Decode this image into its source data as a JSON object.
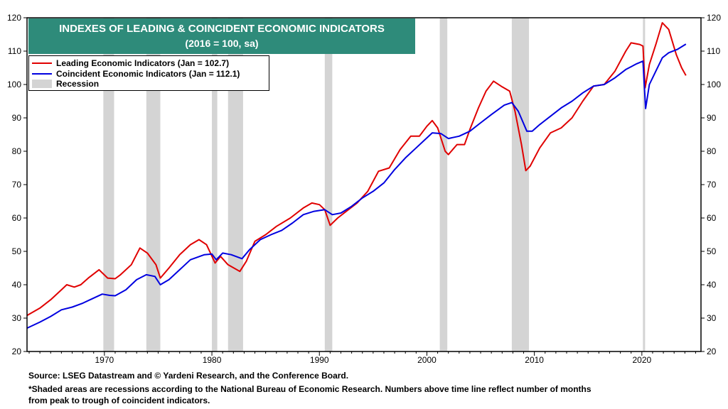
{
  "title": {
    "line1": "INDEXES OF LEADING & COINCIDENT ECONOMIC INDICATORS",
    "line2": "(2016 = 100, sa)"
  },
  "legend": {
    "items": [
      {
        "label": "Leading Economic Indicators (Jan = 102.7)",
        "color": "#e00000",
        "kind": "line"
      },
      {
        "label": "Coincident Economic Indicators (Jan = 112.1)",
        "color": "#0000e0",
        "kind": "line"
      },
      {
        "label": "Recession",
        "color": "#d4d4d4",
        "kind": "box"
      }
    ]
  },
  "footnotes": {
    "source": "Source: LSEG Datastream and © Yardeni Research, and the Conference Board.",
    "note1": "*Shaded areas are recessions according to the National Bureau of Economic Research. Numbers above time line reflect number of months",
    "note2": "from peak to trough of coincident indicators."
  },
  "colors": {
    "leading": "#e00000",
    "coincident": "#0000e0",
    "recession": "#d4d4d4",
    "title_bg": "#2e8b7a"
  },
  "chart_data": {
    "type": "line",
    "xlim": [
      1962.8,
      2025.5
    ],
    "ylim": [
      20,
      120
    ],
    "x_ticks": [
      1970,
      1980,
      1990,
      2000,
      2010,
      2020
    ],
    "y_ticks": [
      20,
      30,
      40,
      50,
      60,
      70,
      80,
      90,
      100,
      110,
      120
    ],
    "grid": false,
    "legend_position": "top-left",
    "recessions": [
      [
        1969.9,
        1970.9
      ],
      [
        1973.9,
        1975.2
      ],
      [
        1980.0,
        1980.5
      ],
      [
        1981.5,
        1982.9
      ],
      [
        1990.5,
        1991.2
      ],
      [
        2001.2,
        2001.9
      ],
      [
        2007.9,
        2009.5
      ],
      [
        2020.1,
        2020.3
      ]
    ],
    "series": [
      {
        "name": "Leading Economic Indicators (Jan = 102.7)",
        "points": [
          [
            1962.8,
            30.8
          ],
          [
            1964,
            33
          ],
          [
            1965,
            35.5
          ],
          [
            1966,
            38.5
          ],
          [
            1966.5,
            40
          ],
          [
            1967.2,
            39.3
          ],
          [
            1967.8,
            40
          ],
          [
            1968.5,
            42
          ],
          [
            1969.5,
            44.5
          ],
          [
            1970.3,
            42
          ],
          [
            1971,
            41.8
          ],
          [
            1971.5,
            43
          ],
          [
            1972.5,
            46
          ],
          [
            1973.3,
            51
          ],
          [
            1974,
            49.5
          ],
          [
            1974.8,
            46
          ],
          [
            1975.2,
            42
          ],
          [
            1976,
            45
          ],
          [
            1977,
            49
          ],
          [
            1978,
            52
          ],
          [
            1978.8,
            53.5
          ],
          [
            1979.5,
            52
          ],
          [
            1980.3,
            46.5
          ],
          [
            1980.8,
            48.5
          ],
          [
            1981.5,
            46
          ],
          [
            1982.6,
            44
          ],
          [
            1983.2,
            47
          ],
          [
            1984,
            53
          ],
          [
            1985,
            55
          ],
          [
            1986,
            57.5
          ],
          [
            1987.3,
            60
          ],
          [
            1988.5,
            63
          ],
          [
            1989.3,
            64.5
          ],
          [
            1990,
            64
          ],
          [
            1990.5,
            62.5
          ],
          [
            1991,
            57.8
          ],
          [
            1991.7,
            60
          ],
          [
            1992.5,
            62
          ],
          [
            1993.5,
            64.5
          ],
          [
            1994.5,
            68
          ],
          [
            1995.5,
            74
          ],
          [
            1996.5,
            75
          ],
          [
            1997.5,
            80.5
          ],
          [
            1998.5,
            84.5
          ],
          [
            1999.3,
            84.5
          ],
          [
            2000,
            87.5
          ],
          [
            2000.5,
            89.2
          ],
          [
            2001,
            87
          ],
          [
            2001.7,
            80
          ],
          [
            2002,
            79
          ],
          [
            2002.8,
            82
          ],
          [
            2003.5,
            82
          ],
          [
            2004,
            86.5
          ],
          [
            2004.8,
            93
          ],
          [
            2005.5,
            98
          ],
          [
            2006.2,
            101
          ],
          [
            2007,
            99.3
          ],
          [
            2007.7,
            98
          ],
          [
            2008.2,
            92
          ],
          [
            2008.8,
            82
          ],
          [
            2009.2,
            74.2
          ],
          [
            2009.6,
            75.5
          ],
          [
            2010.5,
            81
          ],
          [
            2011.5,
            85.5
          ],
          [
            2012.5,
            87
          ],
          [
            2013.5,
            90
          ],
          [
            2014.5,
            95
          ],
          [
            2015.5,
            99.5
          ],
          [
            2016.5,
            100
          ],
          [
            2017.5,
            104
          ],
          [
            2018.5,
            110
          ],
          [
            2019,
            112.5
          ],
          [
            2019.8,
            112
          ],
          [
            2020.1,
            111.5
          ],
          [
            2020.3,
            99
          ],
          [
            2020.7,
            106
          ],
          [
            2021.3,
            112
          ],
          [
            2021.9,
            118.5
          ],
          [
            2022.5,
            116.5
          ],
          [
            2023.2,
            109
          ],
          [
            2023.7,
            105
          ],
          [
            2024.1,
            102.7
          ]
        ]
      },
      {
        "name": "Coincident Economic Indicators (Jan = 112.1)",
        "points": [
          [
            1962.8,
            27
          ],
          [
            1964,
            28.8
          ],
          [
            1965,
            30.5
          ],
          [
            1966,
            32.5
          ],
          [
            1967,
            33.3
          ],
          [
            1968,
            34.5
          ],
          [
            1969,
            36
          ],
          [
            1969.8,
            37.2
          ],
          [
            1970.5,
            36.8
          ],
          [
            1971,
            36.7
          ],
          [
            1972,
            38.5
          ],
          [
            1973,
            41.5
          ],
          [
            1973.9,
            43
          ],
          [
            1974.7,
            42.5
          ],
          [
            1975.2,
            40
          ],
          [
            1976,
            41.5
          ],
          [
            1977,
            44.5
          ],
          [
            1978,
            47.5
          ],
          [
            1979.3,
            49
          ],
          [
            1980,
            49.2
          ],
          [
            1980.4,
            47.5
          ],
          [
            1981,
            49.5
          ],
          [
            1981.8,
            49
          ],
          [
            1982.8,
            47.8
          ],
          [
            1983.5,
            50.5
          ],
          [
            1984.5,
            53.5
          ],
          [
            1985.5,
            55
          ],
          [
            1986.5,
            56.3
          ],
          [
            1987.5,
            58.5
          ],
          [
            1988.5,
            61
          ],
          [
            1989.5,
            62
          ],
          [
            1990.5,
            62.5
          ],
          [
            1991.2,
            61
          ],
          [
            1992,
            61.5
          ],
          [
            1993,
            63.5
          ],
          [
            1994,
            66
          ],
          [
            1995,
            68
          ],
          [
            1996,
            70.5
          ],
          [
            1997,
            74.5
          ],
          [
            1998,
            78
          ],
          [
            1999,
            81
          ],
          [
            2000.5,
            85.5
          ],
          [
            2001.3,
            85.3
          ],
          [
            2002,
            83.8
          ],
          [
            2003,
            84.5
          ],
          [
            2004,
            86
          ],
          [
            2005,
            88.5
          ],
          [
            2006,
            91
          ],
          [
            2007.2,
            93.8
          ],
          [
            2007.9,
            94.6
          ],
          [
            2008.5,
            92
          ],
          [
            2009.3,
            86
          ],
          [
            2009.8,
            86
          ],
          [
            2010.5,
            88
          ],
          [
            2011.5,
            90.5
          ],
          [
            2012.5,
            93
          ],
          [
            2013.5,
            95
          ],
          [
            2014.5,
            97.5
          ],
          [
            2015.5,
            99.5
          ],
          [
            2016.5,
            100
          ],
          [
            2017.5,
            102
          ],
          [
            2018.5,
            104.5
          ],
          [
            2019.5,
            106.2
          ],
          [
            2020.1,
            107
          ],
          [
            2020.35,
            92.8
          ],
          [
            2020.7,
            100
          ],
          [
            2021.3,
            104
          ],
          [
            2021.9,
            108
          ],
          [
            2022.5,
            109.5
          ],
          [
            2023.3,
            110.5
          ],
          [
            2024.1,
            112.1
          ]
        ]
      }
    ]
  }
}
